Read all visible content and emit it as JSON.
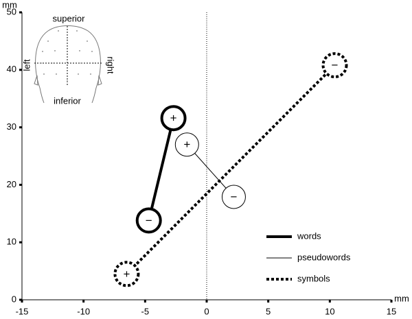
{
  "chart_data": {
    "type": "line",
    "x_label": "mm",
    "y_label": "mm",
    "xlim": [
      -15,
      15
    ],
    "ylim": [
      0,
      50
    ],
    "xticks": [
      -15,
      -10,
      -5,
      0,
      5,
      10,
      15
    ],
    "yticks": [
      0,
      10,
      20,
      30,
      40,
      50
    ],
    "vline": 0,
    "poles": [
      "+",
      "−"
    ],
    "series": [
      {
        "name": "words",
        "color": "#000",
        "width": 4,
        "dash": "none",
        "x": [
          -2.7,
          -4.7
        ],
        "values": [
          31.6,
          13.8
        ]
      },
      {
        "name": "pseudowords",
        "color": "#000",
        "width": 1,
        "dash": "none",
        "x": [
          -1.6,
          2.2
        ],
        "values": [
          27.0,
          17.9
        ]
      },
      {
        "name": "symbols",
        "color": "#000",
        "width": 4,
        "dash": "4 3",
        "x": [
          -6.5,
          10.4
        ],
        "values": [
          4.5,
          40.8
        ]
      }
    ],
    "inset": {
      "top": "superior",
      "bottom": "inferior",
      "left": "left",
      "right": "right"
    }
  }
}
